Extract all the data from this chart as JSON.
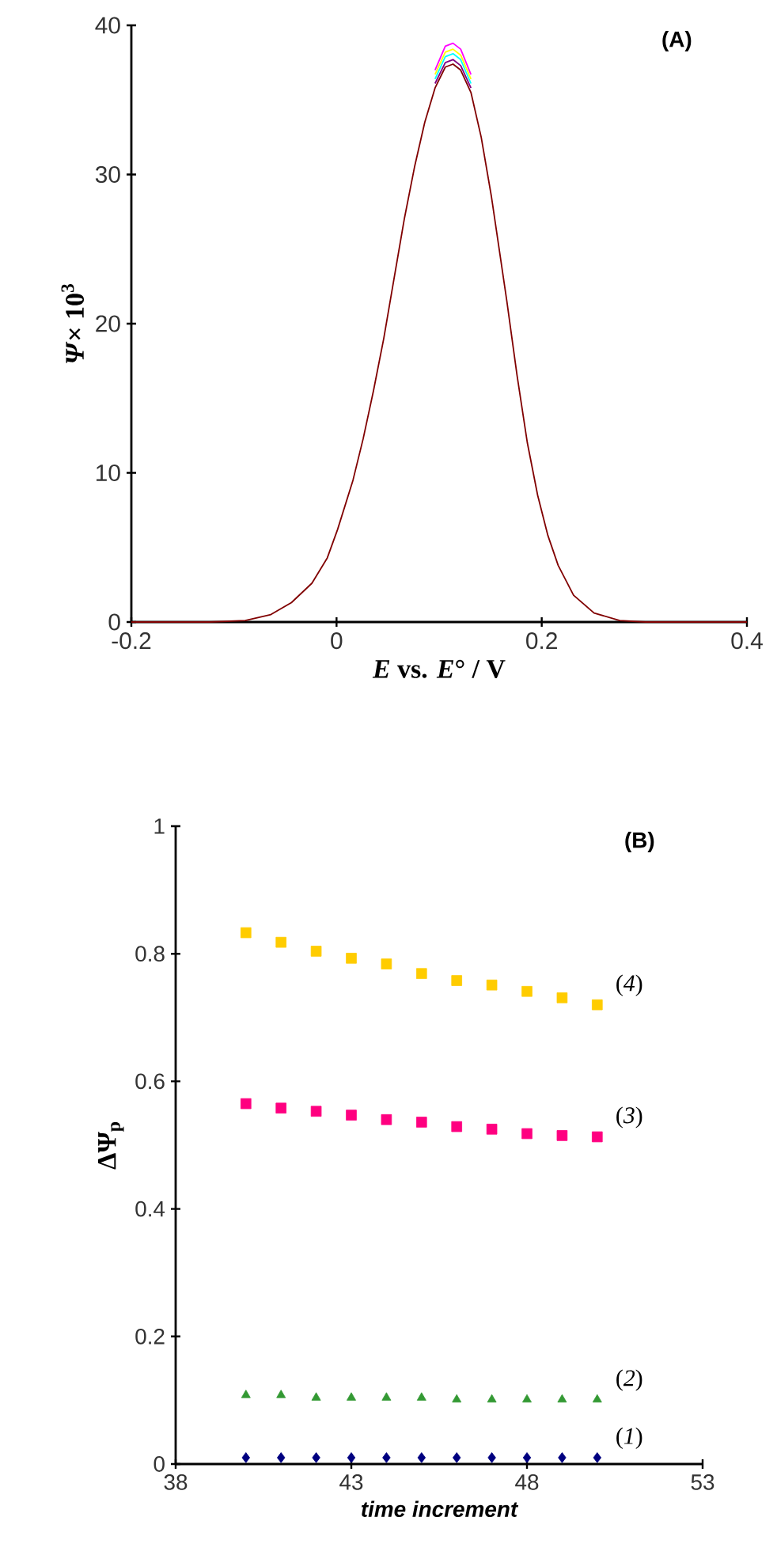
{
  "chart_data": [
    {
      "type": "line",
      "title": "(A)",
      "xlabel": "*E* vs. *E*° / V",
      "ylabel": "*Ψ*× 10$^{3}$",
      "x": [
        -0.2,
        -0.124,
        -0.089,
        -0.064,
        -0.044,
        -0.024,
        -0.009,
        0.001,
        0.016,
        0.026,
        0.036,
        0.046,
        0.056,
        0.066,
        0.076,
        0.086,
        0.096,
        0.106,
        0.1135,
        0.121,
        0.131,
        0.141,
        0.151,
        0.1585,
        0.166,
        0.176,
        0.186,
        0.196,
        0.206,
        0.216,
        0.231,
        0.251,
        0.276,
        0.301,
        0.4
      ],
      "series": [
        {
          "color": "#ff00ff",
          "values": [
            null,
            null,
            null,
            null,
            null,
            null,
            null,
            null,
            null,
            null,
            null,
            null,
            null,
            null,
            null,
            null,
            37.0,
            38.6,
            38.8,
            38.4,
            36.7,
            null,
            null,
            null,
            null,
            null,
            null,
            null,
            null,
            null,
            null,
            null,
            null,
            null,
            null
          ]
        },
        {
          "color": "#ffff00",
          "values": [
            null,
            null,
            null,
            null,
            null,
            null,
            null,
            null,
            null,
            null,
            null,
            null,
            null,
            null,
            null,
            null,
            36.7,
            38.2,
            38.4,
            38,
            36.4,
            null,
            null,
            null,
            null,
            null,
            null,
            null,
            null,
            null,
            null,
            null,
            null,
            null,
            null
          ]
        },
        {
          "color": "#00ffff",
          "values": [
            null,
            null,
            null,
            null,
            null,
            null,
            null,
            null,
            null,
            null,
            null,
            null,
            null,
            null,
            null,
            null,
            36.4,
            37.9,
            38.1,
            37.7,
            36.1,
            null,
            null,
            null,
            null,
            null,
            null,
            null,
            null,
            null,
            null,
            null,
            null,
            null,
            null
          ]
        },
        {
          "color": "#800080",
          "values": [
            null,
            null,
            null,
            null,
            null,
            null,
            null,
            null,
            null,
            null,
            null,
            null,
            null,
            null,
            null,
            null,
            36.1,
            37.5,
            37.7,
            37.3,
            35.8,
            null,
            null,
            null,
            null,
            null,
            null,
            null,
            null,
            null,
            null,
            null,
            null,
            null,
            null
          ]
        },
        {
          "color": "#800000",
          "values": [
            0,
            0,
            0.1,
            0.5,
            1.3,
            2.6,
            4.3,
            6.2,
            9.5,
            12.3,
            15.5,
            19,
            23,
            27,
            30.5,
            33.5,
            35.8,
            37.2,
            37.4,
            37,
            35.5,
            32.5,
            28.5,
            25,
            21.5,
            16.5,
            12,
            8.5,
            5.8,
            3.8,
            1.8,
            0.6,
            0.1,
            0,
            0
          ]
        }
      ],
      "xlim": [
        -0.2,
        0.4
      ],
      "xticks": [
        -0.2,
        0,
        0.2,
        0.4
      ],
      "ylim": [
        0,
        40
      ],
      "yticks": [
        0,
        10,
        20,
        30,
        40
      ],
      "marker": "none",
      "line_style": "solid"
    },
    {
      "type": "scatter",
      "title": "(B)",
      "xlabel": "time increment",
      "ylabel": "ΔΨ$_{p}$",
      "x": [
        40,
        41,
        42,
        43,
        44,
        45,
        46,
        47,
        48,
        49,
        50
      ],
      "series": [
        {
          "name": "(*1*)",
          "color": "#000080",
          "marker": "diamond",
          "values": [
            0.01,
            0.01,
            0.01,
            0.01,
            0.01,
            0.01,
            0.01,
            0.01,
            0.01,
            0.01,
            0.01
          ]
        },
        {
          "name": "(*2*)",
          "color": "#339933",
          "marker": "triangle",
          "values": [
            0.108,
            0.108,
            0.104,
            0.104,
            0.104,
            0.104,
            0.101,
            0.101,
            0.101,
            0.101,
            0.101
          ]
        },
        {
          "name": "(*3*)",
          "color": "#ff0080",
          "marker": "square",
          "values": [
            0.565,
            0.558,
            0.553,
            0.547,
            0.54,
            0.536,
            0.529,
            0.525,
            0.518,
            0.515,
            0.513
          ]
        },
        {
          "name": "(*4*)",
          "color": "#ffcc00",
          "marker": "square",
          "values": [
            0.833,
            0.818,
            0.804,
            0.793,
            0.784,
            0.769,
            0.758,
            0.751,
            0.741,
            0.731,
            0.72
          ]
        }
      ],
      "xlim": [
        38,
        53
      ],
      "xticks": [
        38,
        43,
        48,
        53
      ],
      "ylim": [
        0,
        1
      ],
      "yticks": [
        0,
        0.2,
        0.4,
        0.6,
        0.8,
        1
      ]
    }
  ]
}
